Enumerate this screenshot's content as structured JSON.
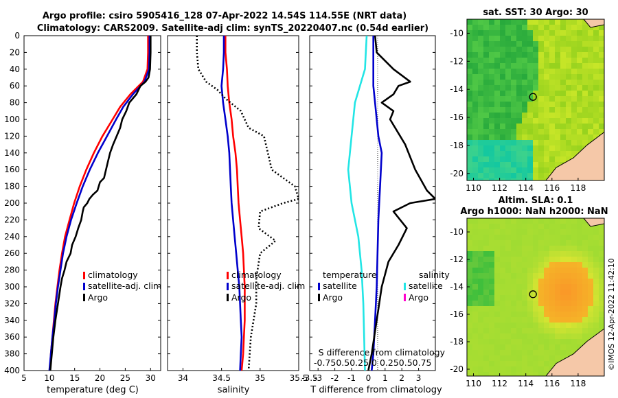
{
  "header": {
    "line1": "Argo profile: csiro 5905416_128 07-Apr-2022 14.54S 114.55E (NRT data)",
    "line2": "Climatology: CARS2009. Satellite-adj clim: synTS_20220407.nc (0.54d earlier)"
  },
  "colors": {
    "climatology": "#ff0000",
    "satellite": "#0000cc",
    "argo": "#000000",
    "satellite_salinity": "#22e5e5",
    "argo_salinity": "#ff00cc",
    "land": "#f5c8a8"
  },
  "chart_data": [
    {
      "id": "temperature",
      "type": "line",
      "xlabel": "temperature (deg C)",
      "xlim": [
        5,
        32
      ],
      "xticks": [
        5,
        10,
        15,
        20,
        25,
        30
      ],
      "ylim": [
        400,
        0
      ],
      "yticks": [
        0,
        20,
        40,
        60,
        80,
        100,
        120,
        140,
        160,
        180,
        200,
        220,
        240,
        260,
        280,
        300,
        320,
        340,
        360,
        380,
        400
      ],
      "legend": [
        "climatology",
        "satellite-adj. clim",
        "Argo"
      ],
      "series": [
        {
          "name": "climatology",
          "color": "#ff0000",
          "style": "solid",
          "points": [
            [
              29.5,
              0
            ],
            [
              29.5,
              20
            ],
            [
              29.4,
              40
            ],
            [
              28.5,
              55
            ],
            [
              26,
              70
            ],
            [
              24,
              85
            ],
            [
              22.5,
              100
            ],
            [
              20.5,
              120
            ],
            [
              18.8,
              140
            ],
            [
              17.3,
              160
            ],
            [
              16,
              180
            ],
            [
              14.9,
              200
            ],
            [
              14,
              220
            ],
            [
              13.1,
              240
            ],
            [
              12.5,
              260
            ],
            [
              12,
              280
            ],
            [
              11.6,
              300
            ],
            [
              11.2,
              320
            ],
            [
              10.9,
              340
            ],
            [
              10.6,
              360
            ],
            [
              10.3,
              380
            ],
            [
              10.1,
              400
            ]
          ]
        },
        {
          "name": "satellite-adj. clim",
          "color": "#0000cc",
          "style": "solid",
          "points": [
            [
              29.8,
              0
            ],
            [
              29.8,
              20
            ],
            [
              29.7,
              40
            ],
            [
              28.8,
              55
            ],
            [
              26.5,
              70
            ],
            [
              24.6,
              85
            ],
            [
              23.2,
              100
            ],
            [
              21.4,
              120
            ],
            [
              19.6,
              140
            ],
            [
              18,
              160
            ],
            [
              16.6,
              180
            ],
            [
              15.4,
              200
            ],
            [
              14.3,
              220
            ],
            [
              13.4,
              240
            ],
            [
              12.7,
              260
            ],
            [
              12.2,
              280
            ],
            [
              11.7,
              300
            ],
            [
              11.3,
              320
            ],
            [
              11,
              340
            ],
            [
              10.6,
              360
            ],
            [
              10.3,
              380
            ],
            [
              10,
              400
            ]
          ]
        },
        {
          "name": "Argo",
          "color": "#000000",
          "style": "solid",
          "points": [
            [
              30,
              0
            ],
            [
              30,
              20
            ],
            [
              29.9,
              40
            ],
            [
              29.6,
              50
            ],
            [
              29,
              55
            ],
            [
              28,
              60
            ],
            [
              27.2,
              70
            ],
            [
              25.8,
              80
            ],
            [
              25.2,
              90
            ],
            [
              24.4,
              100
            ],
            [
              24,
              110
            ],
            [
              23.3,
              120
            ],
            [
              22.6,
              130
            ],
            [
              22,
              140
            ],
            [
              21.6,
              150
            ],
            [
              21.2,
              160
            ],
            [
              20.8,
              170
            ],
            [
              20,
              175
            ],
            [
              19.5,
              185
            ],
            [
              18.6,
              190
            ],
            [
              17.9,
              195
            ],
            [
              17.5,
              200
            ],
            [
              16.8,
              205
            ],
            [
              16.6,
              210
            ],
            [
              16.3,
              220
            ],
            [
              15.7,
              230
            ],
            [
              15.2,
              240
            ],
            [
              14.5,
              250
            ],
            [
              14.2,
              260
            ],
            [
              13.4,
              270
            ],
            [
              13,
              280
            ],
            [
              12.5,
              290
            ],
            [
              12.2,
              300
            ],
            [
              11.7,
              320
            ],
            [
              11.2,
              340
            ],
            [
              10.8,
              360
            ],
            [
              10.5,
              380
            ],
            [
              10.2,
              400
            ]
          ]
        }
      ]
    },
    {
      "id": "salinity",
      "type": "line",
      "xlabel": "salinity",
      "xlim": [
        33.8,
        35.5
      ],
      "xticks": [
        34,
        34.5,
        35,
        35.5
      ],
      "ylim": [
        400,
        0
      ],
      "legend": [
        "climatology",
        "satellite-adj. clim",
        "Argo"
      ],
      "series": [
        {
          "name": "climatology",
          "color": "#ff0000",
          "style": "solid",
          "points": [
            [
              34.55,
              0
            ],
            [
              34.55,
              20
            ],
            [
              34.57,
              40
            ],
            [
              34.58,
              60
            ],
            [
              34.6,
              80
            ],
            [
              34.63,
              100
            ],
            [
              34.65,
              120
            ],
            [
              34.68,
              140
            ],
            [
              34.7,
              160
            ],
            [
              34.71,
              180
            ],
            [
              34.72,
              200
            ],
            [
              34.74,
              220
            ],
            [
              34.76,
              240
            ],
            [
              34.78,
              260
            ],
            [
              34.79,
              280
            ],
            [
              34.8,
              300
            ],
            [
              34.8,
              320
            ],
            [
              34.8,
              340
            ],
            [
              34.79,
              360
            ],
            [
              34.78,
              380
            ],
            [
              34.76,
              400
            ]
          ]
        },
        {
          "name": "satellite-adj. clim",
          "color": "#0000cc",
          "style": "solid",
          "points": [
            [
              34.53,
              0
            ],
            [
              34.53,
              20
            ],
            [
              34.52,
              40
            ],
            [
              34.5,
              60
            ],
            [
              34.52,
              80
            ],
            [
              34.55,
              100
            ],
            [
              34.58,
              120
            ],
            [
              34.6,
              140
            ],
            [
              34.61,
              160
            ],
            [
              34.62,
              180
            ],
            [
              34.63,
              200
            ],
            [
              34.65,
              220
            ],
            [
              34.67,
              240
            ],
            [
              34.69,
              260
            ],
            [
              34.71,
              280
            ],
            [
              34.73,
              300
            ],
            [
              34.74,
              320
            ],
            [
              34.75,
              340
            ],
            [
              34.76,
              360
            ],
            [
              34.75,
              380
            ],
            [
              34.74,
              400
            ]
          ]
        },
        {
          "name": "Argo",
          "color": "#000000",
          "style": "dotted",
          "points": [
            [
              34.18,
              0
            ],
            [
              34.18,
              20
            ],
            [
              34.2,
              40
            ],
            [
              34.3,
              55
            ],
            [
              34.45,
              65
            ],
            [
              34.55,
              75
            ],
            [
              34.75,
              90
            ],
            [
              34.85,
              110
            ],
            [
              35.05,
              120
            ],
            [
              35.1,
              140
            ],
            [
              35.15,
              160
            ],
            [
              35.3,
              170
            ],
            [
              35.45,
              180
            ],
            [
              35.5,
              195
            ],
            [
              35.3,
              200
            ],
            [
              35.0,
              210
            ],
            [
              34.98,
              230
            ],
            [
              35.2,
              245
            ],
            [
              35.0,
              260
            ],
            [
              34.95,
              290
            ],
            [
              34.95,
              320
            ],
            [
              34.88,
              360
            ],
            [
              34.85,
              400
            ]
          ]
        }
      ]
    },
    {
      "id": "difference",
      "type": "line",
      "xlabel": "T difference from climatology",
      "xlim": [
        -3.5,
        4
      ],
      "xticks": [
        -3.5,
        -3,
        -2,
        -1,
        0,
        1,
        2,
        3
      ],
      "s_annotation": "S difference from climatology",
      "s_ticks": "-0.750.50.25 0 0.250.50.75",
      "ylim": [
        400,
        0
      ],
      "legend_left_title": "temperature",
      "legend_right_title": "salinity",
      "legend": [
        "satellite",
        "Argo"
      ],
      "series": [
        {
          "name": "temperature satellite",
          "color": "#0000cc",
          "points": [
            [
              0.3,
              0
            ],
            [
              0.3,
              20
            ],
            [
              0.3,
              60
            ],
            [
              0.4,
              80
            ],
            [
              0.6,
              120
            ],
            [
              0.8,
              140
            ],
            [
              0.7,
              180
            ],
            [
              0.6,
              220
            ],
            [
              0.55,
              260
            ],
            [
              0.5,
              300
            ],
            [
              0.4,
              340
            ],
            [
              0.3,
              380
            ],
            [
              0.2,
              400
            ]
          ]
        },
        {
          "name": "temperature Argo",
          "color": "#000000",
          "points": [
            [
              0.4,
              0
            ],
            [
              0.5,
              20
            ],
            [
              1.5,
              40
            ],
            [
              2.5,
              55
            ],
            [
              1.8,
              60
            ],
            [
              1.5,
              70
            ],
            [
              0.8,
              80
            ],
            [
              1.5,
              90
            ],
            [
              1.3,
              100
            ],
            [
              2.2,
              130
            ],
            [
              2.8,
              160
            ],
            [
              3.5,
              185
            ],
            [
              4,
              195
            ],
            [
              2.5,
              200
            ],
            [
              1.5,
              210
            ],
            [
              2.3,
              230
            ],
            [
              1.8,
              250
            ],
            [
              1.2,
              270
            ],
            [
              0.8,
              300
            ],
            [
              0.5,
              340
            ],
            [
              0.2,
              380
            ],
            [
              0,
              400
            ]
          ]
        },
        {
          "name": "salinity satellite",
          "color": "#22e5e5",
          "points": [
            [
              -0.1,
              0
            ],
            [
              -0.2,
              40
            ],
            [
              -0.8,
              80
            ],
            [
              -1,
              120
            ],
            [
              -1.2,
              160
            ],
            [
              -1,
              200
            ],
            [
              -0.6,
              240
            ],
            [
              -0.4,
              280
            ],
            [
              -0.3,
              320
            ],
            [
              -0.25,
              360
            ],
            [
              -0.2,
              400
            ]
          ]
        },
        {
          "name": "salinity Argo",
          "color": "#ff00cc",
          "points": []
        }
      ]
    },
    {
      "id": "sst_map",
      "type": "heatmap",
      "title": "sat. SST: 30 Argo: 30",
      "xticks": [
        110,
        112,
        114,
        116,
        118
      ],
      "yticks": [
        -10,
        -12,
        -14,
        -16,
        -18,
        -20
      ],
      "xlim": [
        109.5,
        120
      ],
      "ylim": [
        -20.5,
        -9
      ],
      "argo_position": [
        114.55,
        -14.54
      ]
    },
    {
      "id": "sla_map",
      "type": "heatmap",
      "title1": "Altim. SLA: 0.1",
      "title2": "Argo h1000: NaN h2000: NaN",
      "xticks": [
        110,
        112,
        114,
        116,
        118
      ],
      "yticks": [
        -10,
        -12,
        -14,
        -16,
        -18,
        -20
      ],
      "xlim": [
        109.5,
        120
      ],
      "ylim": [
        -20.5,
        -9
      ],
      "argo_position": [
        114.55,
        -14.54
      ]
    }
  ],
  "footer": {
    "credit": "©IMOS 12-Apr-2022 11:42:10"
  }
}
